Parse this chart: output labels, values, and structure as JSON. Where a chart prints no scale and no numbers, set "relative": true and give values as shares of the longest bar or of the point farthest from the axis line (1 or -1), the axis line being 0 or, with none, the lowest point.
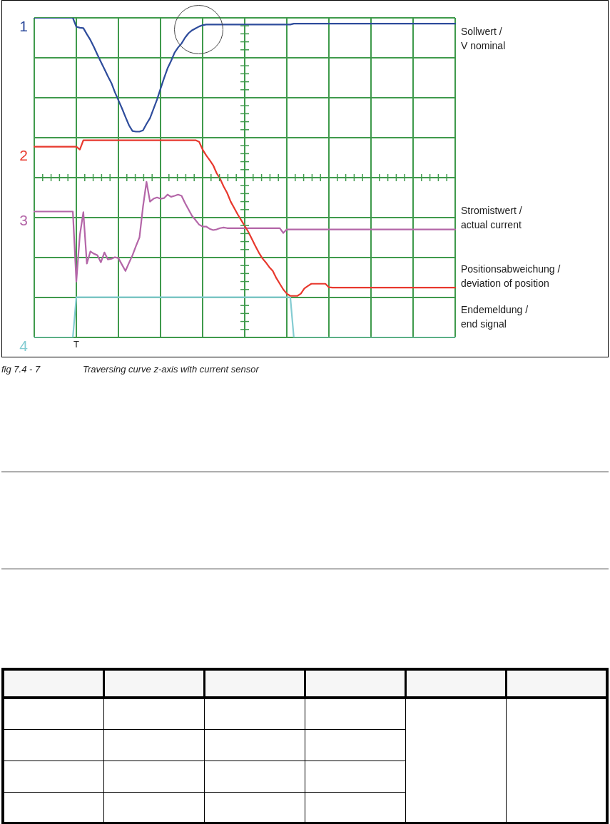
{
  "chart_data": {
    "type": "line",
    "relative": true,
    "grid": true,
    "categories": [
      null,
      null,
      null,
      null,
      null,
      null,
      null,
      null,
      null,
      null,
      null,
      null,
      null,
      null,
      null,
      null,
      null,
      null,
      null,
      null,
      null,
      null,
      null,
      null,
      null,
      null,
      null,
      null,
      null,
      null,
      null,
      null,
      null,
      null,
      null,
      null,
      null,
      null,
      null,
      null,
      null,
      null,
      null,
      null,
      null,
      null,
      null,
      null,
      null,
      null,
      null,
      null,
      null,
      null,
      null,
      null,
      null,
      null,
      null,
      null,
      null,
      null,
      null,
      null,
      null,
      null,
      null,
      null,
      null,
      null,
      null,
      null,
      null,
      null,
      null,
      null,
      null,
      null,
      null,
      null,
      null,
      null,
      null,
      null,
      null,
      null,
      null,
      null,
      null,
      null,
      null,
      null,
      null,
      null,
      null,
      null,
      null,
      null,
      null,
      null,
      null,
      null,
      null,
      null,
      null,
      null,
      null,
      null,
      null,
      null,
      null,
      null,
      null,
      null,
      null,
      null,
      null,
      null,
      null,
      null,
      null
    ],
    "series": [
      {
        "name": "Sollwert / V nominal",
        "color": "#2e4c9c",
        "values": [
          1,
          1,
          1,
          1,
          1,
          1,
          1,
          1,
          1,
          1,
          1,
          1,
          0.972,
          0.969,
          0.968,
          0.949,
          0.931,
          0.909,
          0.885,
          0.862,
          0.84,
          0.817,
          0.796,
          0.767,
          0.742,
          0.717,
          0.69,
          0.664,
          0.646,
          0.644,
          0.644,
          0.648,
          0.668,
          0.686,
          0.715,
          0.744,
          0.778,
          0.811,
          0.842,
          0.865,
          0.891,
          0.907,
          0.92,
          0.938,
          0.952,
          0.961,
          0.967,
          0.973,
          0.977,
          0.979,
          0.979,
          0.979,
          0.979,
          0.979,
          0.979,
          0.979,
          0.979,
          0.979,
          0.979,
          0.979,
          0.979,
          0.979,
          0.979,
          0.979,
          0.979,
          0.979,
          0.979,
          0.979,
          0.979,
          0.979,
          0.979,
          0.979,
          0.979,
          0.979,
          0.982,
          0.982,
          0.982,
          0.982,
          0.982,
          0.982,
          0.982,
          0.982,
          0.982,
          0.982,
          0.982,
          0.982,
          0.982,
          0.982,
          0.982,
          0.982,
          0.982,
          0.982,
          0.982,
          0.982,
          0.982,
          0.982,
          0.982,
          0.982,
          0.982,
          0.982,
          0.982,
          0.982,
          0.982,
          0.982,
          0.982,
          0.982,
          0.982,
          0.982,
          0.982,
          0.982,
          0.982,
          0.982,
          0.982,
          0.982,
          0.982,
          0.982,
          0.982,
          0.982,
          0.982,
          0.982,
          0.982
        ]
      },
      {
        "name": "Positionsabweichung / deviation of position",
        "color": "#e8392e",
        "values": [
          0.597,
          0.597,
          0.597,
          0.597,
          0.597,
          0.597,
          0.597,
          0.597,
          0.597,
          0.597,
          0.597,
          0.597,
          0.597,
          0.588,
          0.617,
          0.617,
          0.617,
          0.617,
          0.617,
          0.617,
          0.617,
          0.617,
          0.617,
          0.617,
          0.617,
          0.617,
          0.617,
          0.617,
          0.617,
          0.617,
          0.617,
          0.617,
          0.617,
          0.617,
          0.617,
          0.617,
          0.617,
          0.617,
          0.617,
          0.617,
          0.617,
          0.617,
          0.617,
          0.617,
          0.617,
          0.617,
          0.617,
          0.612,
          0.588,
          0.57,
          0.555,
          0.539,
          0.514,
          0.496,
          0.472,
          0.452,
          0.425,
          0.405,
          0.385,
          0.367,
          0.349,
          0.331,
          0.309,
          0.287,
          0.266,
          0.248,
          0.235,
          0.22,
          0.208,
          0.186,
          0.168,
          0.15,
          0.137,
          0.13,
          0.13,
          0.13,
          0.137,
          0.153,
          0.161,
          0.168,
          0.168,
          0.168,
          0.168,
          0.168,
          0.157,
          0.156,
          0.156,
          0.156,
          0.156,
          0.156,
          0.156,
          0.156,
          0.156,
          0.156,
          0.156,
          0.156,
          0.156,
          0.156,
          0.156,
          0.156,
          0.156,
          0.156,
          0.156,
          0.156,
          0.156,
          0.156,
          0.156,
          0.156,
          0.156,
          0.156,
          0.156,
          0.156,
          0.156,
          0.156,
          0.156,
          0.156,
          0.156,
          0.156,
          0.156,
          0.156,
          0.156
        ]
      },
      {
        "name": "Stromistwert / actual current",
        "color": "#b466a8",
        "values": [
          0.394,
          0.394,
          0.394,
          0.394,
          0.394,
          0.394,
          0.394,
          0.394,
          0.394,
          0.394,
          0.394,
          0.394,
          0.175,
          0.32,
          0.392,
          0.231,
          0.269,
          0.262,
          0.257,
          0.235,
          0.266,
          0.244,
          0.246,
          0.251,
          0.248,
          0.228,
          0.208,
          0.233,
          0.257,
          0.286,
          0.313,
          0.409,
          0.487,
          0.425,
          0.434,
          0.438,
          0.434,
          0.436,
          0.447,
          0.44,
          0.443,
          0.447,
          0.443,
          0.42,
          0.4,
          0.38,
          0.367,
          0.353,
          0.347,
          0.347,
          0.34,
          0.336,
          0.338,
          0.342,
          0.344,
          0.342,
          0.342,
          0.342,
          0.342,
          0.342,
          0.342,
          0.342,
          0.342,
          0.342,
          0.342,
          0.342,
          0.342,
          0.342,
          0.342,
          0.342,
          0.342,
          0.327,
          0.338,
          0.338,
          0.338,
          0.338,
          0.338,
          0.338,
          0.338,
          0.338,
          0.338,
          0.338,
          0.338,
          0.338,
          0.338,
          0.338,
          0.338,
          0.338,
          0.338,
          0.338,
          0.338,
          0.338,
          0.338,
          0.338,
          0.338,
          0.338,
          0.338,
          0.338,
          0.338,
          0.338,
          0.338,
          0.338,
          0.338,
          0.338,
          0.338,
          0.338,
          0.338,
          0.338,
          0.338,
          0.338,
          0.338,
          0.338,
          0.338,
          0.338,
          0.338,
          0.338,
          0.338,
          0.338,
          0.338,
          0.338,
          0.338
        ]
      },
      {
        "name": "Endemeldung / end signal",
        "color": "#84ccd2",
        "values": [
          0,
          0,
          0,
          0,
          0,
          0,
          0,
          0,
          0,
          0,
          0,
          0,
          0.126,
          0.126,
          0.126,
          0.126,
          0.126,
          0.126,
          0.126,
          0.126,
          0.126,
          0.126,
          0.126,
          0.126,
          0.126,
          0.126,
          0.126,
          0.126,
          0.126,
          0.126,
          0.126,
          0.126,
          0.126,
          0.126,
          0.126,
          0.126,
          0.126,
          0.126,
          0.126,
          0.126,
          0.126,
          0.126,
          0.126,
          0.126,
          0.126,
          0.126,
          0.126,
          0.126,
          0.126,
          0.126,
          0.126,
          0.126,
          0.126,
          0.126,
          0.126,
          0.126,
          0.126,
          0.126,
          0.126,
          0.126,
          0.126,
          0.126,
          0.126,
          0.126,
          0.126,
          0.126,
          0.126,
          0.126,
          0.126,
          0.126,
          0.126,
          0.126,
          0.126,
          0.126,
          0,
          0,
          0,
          0,
          0,
          0,
          0,
          0,
          0,
          0,
          0,
          0,
          0,
          0,
          0,
          0,
          0,
          0,
          0,
          0,
          0,
          0,
          0,
          0,
          0,
          0,
          0,
          0,
          0,
          0,
          0,
          0,
          0,
          0,
          0,
          0,
          0,
          0,
          0,
          0,
          0,
          0,
          0,
          0,
          0,
          0,
          0
        ]
      }
    ],
    "annotations": [
      "1",
      "2",
      "3",
      "4",
      "T",
      "fig 7.4 - 7",
      "Traversing curve z-axis with current sensor"
    ]
  }
}
